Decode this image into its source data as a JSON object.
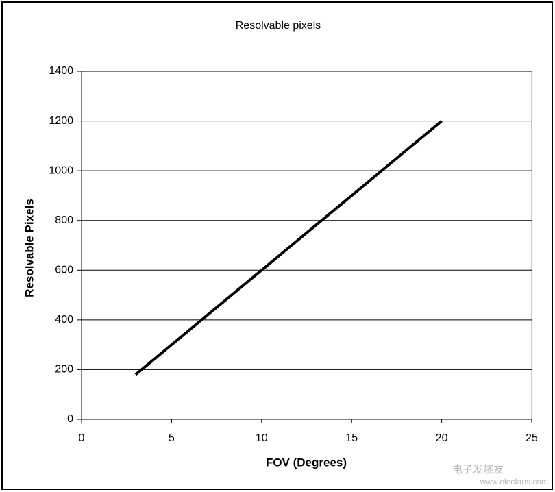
{
  "chart_data": {
    "type": "line",
    "title": "Resolvable pixels",
    "x_label": "FOV (Degrees)",
    "y_label": "Resolvable Pixels",
    "x": [
      3,
      4,
      5,
      6,
      7,
      8,
      9,
      10,
      11,
      12,
      13,
      14,
      15,
      16,
      17,
      18,
      19,
      20
    ],
    "series": [
      {
        "name": "Resolvable pixels",
        "color": "#000000",
        "values": [
          180,
          240,
          300,
          360,
          420,
          480,
          540,
          600,
          660,
          720,
          780,
          840,
          900,
          960,
          1020,
          1080,
          1140,
          1200
        ]
      }
    ],
    "xlim": [
      0,
      25
    ],
    "xticks": [
      0,
      5,
      10,
      15,
      20,
      25
    ],
    "ylim": [
      0,
      1400
    ],
    "yticks": [
      0,
      200,
      400,
      600,
      800,
      1000,
      1200,
      1400
    ],
    "grid": true,
    "watermark": [
      "电子发烧友",
      "www.elecfans.com"
    ]
  }
}
